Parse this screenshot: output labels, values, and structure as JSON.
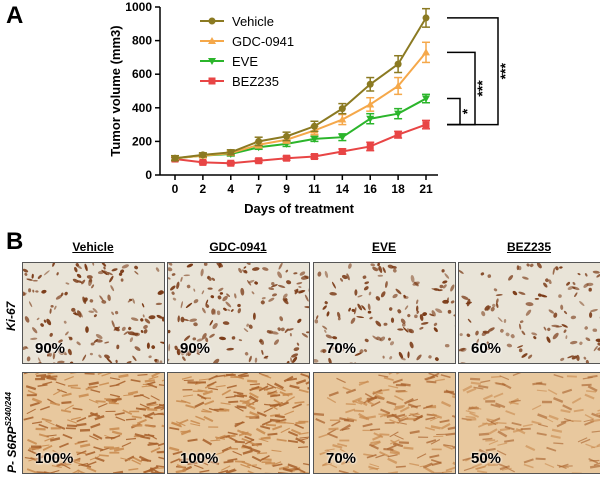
{
  "panel_a_label": "A",
  "panel_b_label": "B",
  "chart_data": {
    "type": "line",
    "title": "",
    "xlabel": "Days of treatment",
    "ylabel": "Tumor volume (mm3)",
    "categories": [
      "0",
      "2",
      "4",
      "7",
      "9",
      "11",
      "14",
      "16",
      "18",
      "21"
    ],
    "x": [
      0,
      2,
      4,
      7,
      9,
      11,
      14,
      16,
      18,
      21
    ],
    "yticks": [
      0,
      200,
      400,
      600,
      800,
      1000
    ],
    "ylim": [
      0,
      1000
    ],
    "legend_position": "top-left",
    "series": [
      {
        "name": "Vehicle",
        "color": "#8b7a22",
        "marker": "circle",
        "values": [
          100,
          120,
          135,
          200,
          230,
          290,
          395,
          540,
          660,
          935
        ],
        "errors": [
          15,
          12,
          15,
          25,
          25,
          30,
          30,
          40,
          50,
          55
        ]
      },
      {
        "name": "GDC-0941",
        "color": "#f5a84a",
        "marker": "triangle-up",
        "values": [
          100,
          115,
          130,
          180,
          210,
          265,
          330,
          420,
          530,
          730
        ],
        "errors": [
          12,
          12,
          12,
          18,
          20,
          25,
          30,
          40,
          50,
          60
        ]
      },
      {
        "name": "EVE",
        "color": "#2bb52b",
        "marker": "triangle-down",
        "values": [
          100,
          115,
          125,
          165,
          185,
          215,
          225,
          335,
          365,
          455
        ],
        "errors": [
          10,
          10,
          12,
          12,
          15,
          15,
          20,
          30,
          30,
          25
        ]
      },
      {
        "name": "BEZ235",
        "color": "#e84545",
        "marker": "square",
        "values": [
          95,
          75,
          70,
          85,
          100,
          110,
          140,
          170,
          240,
          300
        ],
        "errors": [
          10,
          8,
          8,
          10,
          12,
          12,
          15,
          25,
          20,
          25
        ]
      }
    ],
    "significance": [
      {
        "pair": "Vehicle vs BEZ235",
        "label": "***"
      },
      {
        "pair": "GDC-0941 vs BEZ235",
        "label": "***"
      },
      {
        "pair": "EVE vs BEZ235",
        "label": "*"
      }
    ]
  },
  "panel_b": {
    "columns": [
      "Vehicle",
      "GDC-0941",
      "EVE",
      "BEZ235"
    ],
    "rows": [
      {
        "label": "Ki-67",
        "stain": "nuclear",
        "percentages": [
          "90%",
          "90%",
          "70%",
          "60%"
        ],
        "densities": [
          0.9,
          0.9,
          0.7,
          0.6
        ]
      },
      {
        "label": "P- S6RP",
        "superscript": "S240/244",
        "stain": "cytoplasmic",
        "percentages": [
          "100%",
          "100%",
          "70%",
          "50%"
        ],
        "densities": [
          1.0,
          1.0,
          0.7,
          0.5
        ]
      }
    ],
    "colors": {
      "tissue_bg": "#e9e4d8",
      "nuclear": "#7a3a16",
      "cytoplasm": "#c98a4e"
    }
  }
}
